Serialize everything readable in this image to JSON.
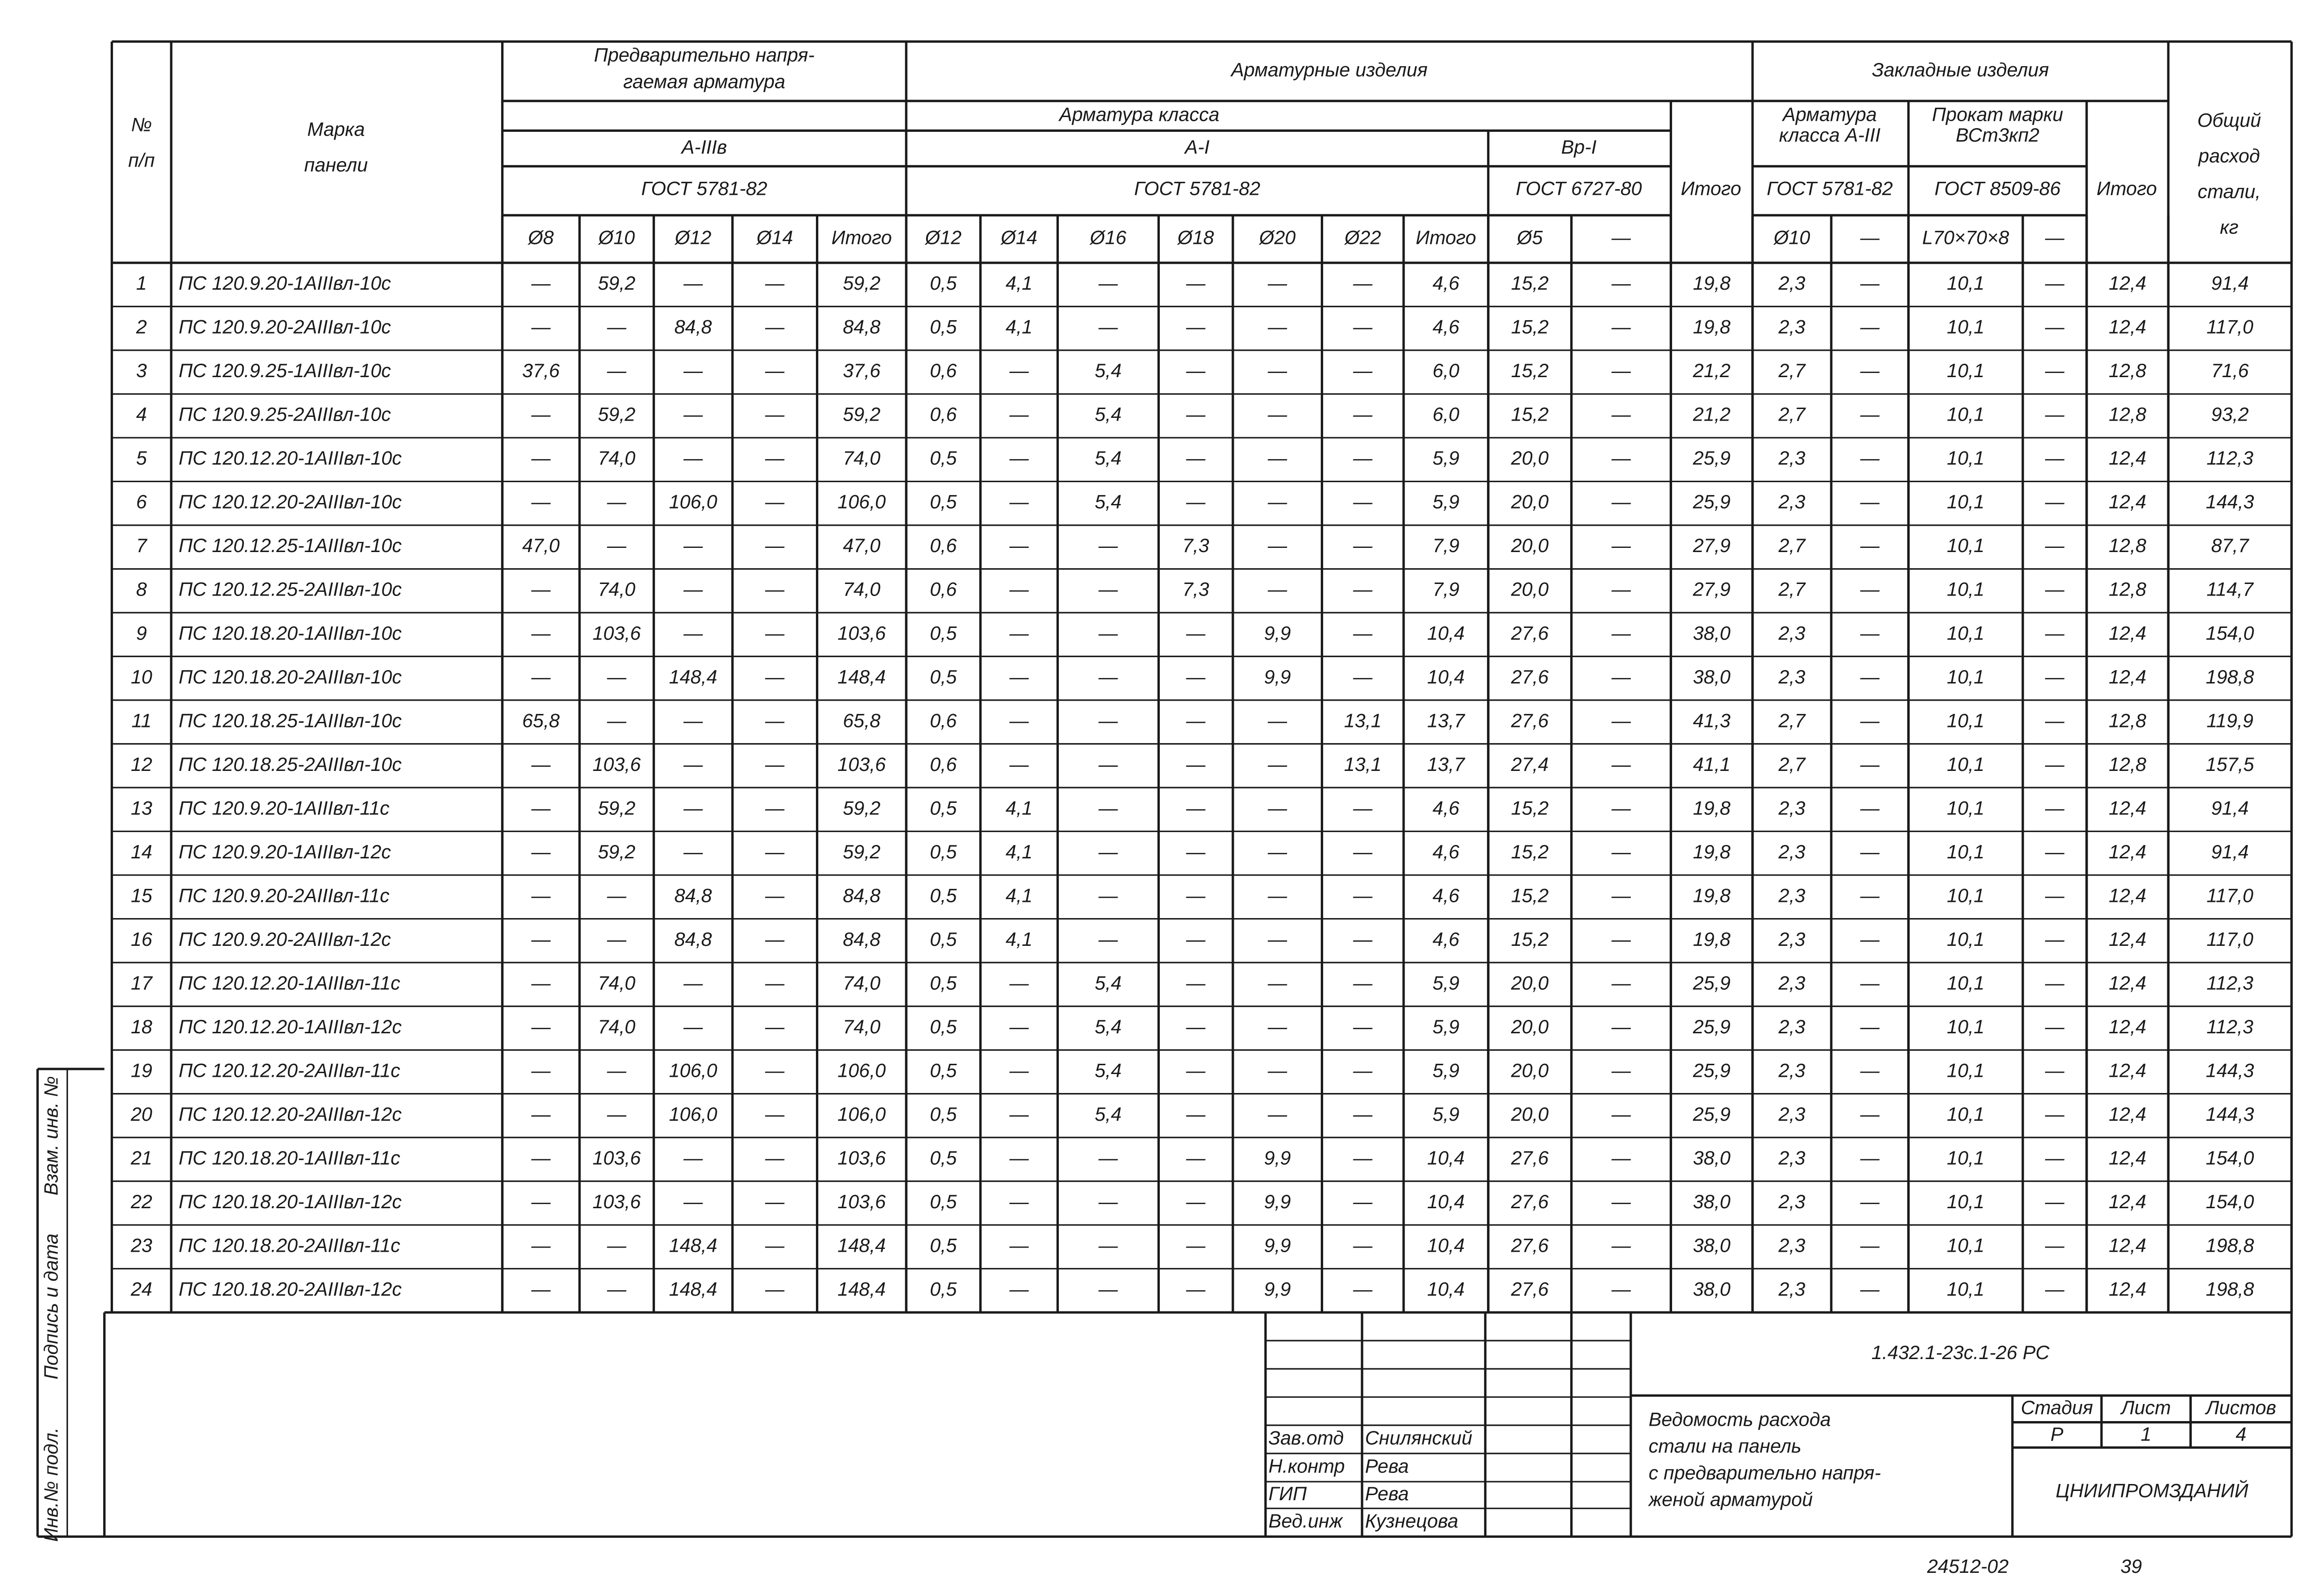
{
  "header": {
    "num": [
      "№",
      "п/п"
    ],
    "mark": [
      "Марка",
      "панели"
    ],
    "prestressed": [
      "Предварительно напря-",
      "гаемая арматура"
    ],
    "rebar_products": "Арматурные изделия",
    "embedded": "Закладные изделия",
    "total_steel": [
      "Общий",
      "расход",
      "стали,",
      "кг"
    ],
    "rebar_class": "Арматура класса",
    "class_a3v": "А-IIIв",
    "class_a1": "А-I",
    "class_vr1": "Вр-I",
    "gost_a3v": "ГОСТ 5781-82",
    "gost_a1": "ГОСТ 5781-82",
    "gost_vr1": "ГОСТ 6727-80",
    "rebar_total": "Итого",
    "emb_rebar": [
      "Арматура",
      "класса А-III"
    ],
    "emb_rolled": [
      "Прокат марки",
      "ВСт3кп2"
    ],
    "emb_gost1": "ГОСТ 5781-82",
    "emb_gost2": "ГОСТ 8509-86",
    "emb_total": "Итого",
    "columns": [
      "Ø8",
      "Ø10",
      "Ø12",
      "Ø14",
      "Итого",
      "Ø12",
      "Ø14",
      "Ø16",
      "Ø18",
      "Ø20",
      "Ø22",
      "Итого",
      "Ø5",
      "—",
      null,
      "Ø10",
      "—",
      "L70×70×8",
      "—",
      null,
      null
    ]
  },
  "table": {
    "rows": [
      [
        "1",
        "ПС 120.9.20-1АIIIвл-10с",
        "—",
        "59,2",
        "—",
        "—",
        "59,2",
        "0,5",
        "4,1",
        "—",
        "—",
        "—",
        "—",
        "4,6",
        "15,2",
        "—",
        "19,8",
        "2,3",
        "—",
        "10,1",
        "—",
        "12,4",
        "91,4"
      ],
      [
        "2",
        "ПС 120.9.20-2АIIIвл-10с",
        "—",
        "—",
        "84,8",
        "—",
        "84,8",
        "0,5",
        "4,1",
        "—",
        "—",
        "—",
        "—",
        "4,6",
        "15,2",
        "—",
        "19,8",
        "2,3",
        "—",
        "10,1",
        "—",
        "12,4",
        "117,0"
      ],
      [
        "3",
        "ПС 120.9.25-1АIIIвл-10с",
        "37,6",
        "—",
        "—",
        "—",
        "37,6",
        "0,6",
        "—",
        "5,4",
        "—",
        "—",
        "—",
        "6,0",
        "15,2",
        "—",
        "21,2",
        "2,7",
        "—",
        "10,1",
        "—",
        "12,8",
        "71,6"
      ],
      [
        "4",
        "ПС 120.9.25-2АIIIвл-10с",
        "—",
        "59,2",
        "—",
        "—",
        "59,2",
        "0,6",
        "—",
        "5,4",
        "—",
        "—",
        "—",
        "6,0",
        "15,2",
        "—",
        "21,2",
        "2,7",
        "—",
        "10,1",
        "—",
        "12,8",
        "93,2"
      ],
      [
        "5",
        "ПС 120.12.20-1АIIIвл-10с",
        "—",
        "74,0",
        "—",
        "—",
        "74,0",
        "0,5",
        "—",
        "5,4",
        "—",
        "—",
        "—",
        "5,9",
        "20,0",
        "—",
        "25,9",
        "2,3",
        "—",
        "10,1",
        "—",
        "12,4",
        "112,3"
      ],
      [
        "6",
        "ПС 120.12.20-2АIIIвл-10с",
        "—",
        "—",
        "106,0",
        "—",
        "106,0",
        "0,5",
        "—",
        "5,4",
        "—",
        "—",
        "—",
        "5,9",
        "20,0",
        "—",
        "25,9",
        "2,3",
        "—",
        "10,1",
        "—",
        "12,4",
        "144,3"
      ],
      [
        "7",
        "ПС 120.12.25-1АIIIвл-10с",
        "47,0",
        "—",
        "—",
        "—",
        "47,0",
        "0,6",
        "—",
        "—",
        "7,3",
        "—",
        "—",
        "7,9",
        "20,0",
        "—",
        "27,9",
        "2,7",
        "—",
        "10,1",
        "—",
        "12,8",
        "87,7"
      ],
      [
        "8",
        "ПС 120.12.25-2АIIIвл-10с",
        "—",
        "74,0",
        "—",
        "—",
        "74,0",
        "0,6",
        "—",
        "—",
        "7,3",
        "—",
        "—",
        "7,9",
        "20,0",
        "—",
        "27,9",
        "2,7",
        "—",
        "10,1",
        "—",
        "12,8",
        "114,7"
      ],
      [
        "9",
        "ПС 120.18.20-1АIIIвл-10с",
        "—",
        "103,6",
        "—",
        "—",
        "103,6",
        "0,5",
        "—",
        "—",
        "—",
        "9,9",
        "—",
        "10,4",
        "27,6",
        "—",
        "38,0",
        "2,3",
        "—",
        "10,1",
        "—",
        "12,4",
        "154,0"
      ],
      [
        "10",
        "ПС 120.18.20-2АIIIвл-10с",
        "—",
        "—",
        "148,4",
        "—",
        "148,4",
        "0,5",
        "—",
        "—",
        "—",
        "9,9",
        "—",
        "10,4",
        "27,6",
        "—",
        "38,0",
        "2,3",
        "—",
        "10,1",
        "—",
        "12,4",
        "198,8"
      ],
      [
        "11",
        "ПС 120.18.25-1АIIIвл-10с",
        "65,8",
        "—",
        "—",
        "—",
        "65,8",
        "0,6",
        "—",
        "—",
        "—",
        "—",
        "13,1",
        "13,7",
        "27,6",
        "—",
        "41,3",
        "2,7",
        "—",
        "10,1",
        "—",
        "12,8",
        "119,9"
      ],
      [
        "12",
        "ПС 120.18.25-2АIIIвл-10с",
        "—",
        "103,6",
        "—",
        "—",
        "103,6",
        "0,6",
        "—",
        "—",
        "—",
        "—",
        "13,1",
        "13,7",
        "27,4",
        "—",
        "41,1",
        "2,7",
        "—",
        "10,1",
        "—",
        "12,8",
        "157,5"
      ],
      [
        "13",
        "ПС 120.9.20-1АIIIвл-11с",
        "—",
        "59,2",
        "—",
        "—",
        "59,2",
        "0,5",
        "4,1",
        "—",
        "—",
        "—",
        "—",
        "4,6",
        "15,2",
        "—",
        "19,8",
        "2,3",
        "—",
        "10,1",
        "—",
        "12,4",
        "91,4"
      ],
      [
        "14",
        "ПС 120.9.20-1АIIIвл-12с",
        "—",
        "59,2",
        "—",
        "—",
        "59,2",
        "0,5",
        "4,1",
        "—",
        "—",
        "—",
        "—",
        "4,6",
        "15,2",
        "—",
        "19,8",
        "2,3",
        "—",
        "10,1",
        "—",
        "12,4",
        "91,4"
      ],
      [
        "15",
        "ПС 120.9.20-2АIIIвл-11с",
        "—",
        "—",
        "84,8",
        "—",
        "84,8",
        "0,5",
        "4,1",
        "—",
        "—",
        "—",
        "—",
        "4,6",
        "15,2",
        "—",
        "19,8",
        "2,3",
        "—",
        "10,1",
        "—",
        "12,4",
        "117,0"
      ],
      [
        "16",
        "ПС 120.9.20-2АIIIвл-12с",
        "—",
        "—",
        "84,8",
        "—",
        "84,8",
        "0,5",
        "4,1",
        "—",
        "—",
        "—",
        "—",
        "4,6",
        "15,2",
        "—",
        "19,8",
        "2,3",
        "—",
        "10,1",
        "—",
        "12,4",
        "117,0"
      ],
      [
        "17",
        "ПС 120.12.20-1АIIIвл-11с",
        "—",
        "74,0",
        "—",
        "—",
        "74,0",
        "0,5",
        "—",
        "5,4",
        "—",
        "—",
        "—",
        "5,9",
        "20,0",
        "—",
        "25,9",
        "2,3",
        "—",
        "10,1",
        "—",
        "12,4",
        "112,3"
      ],
      [
        "18",
        "ПС 120.12.20-1АIIIвл-12с",
        "—",
        "74,0",
        "—",
        "—",
        "74,0",
        "0,5",
        "—",
        "5,4",
        "—",
        "—",
        "—",
        "5,9",
        "20,0",
        "—",
        "25,9",
        "2,3",
        "—",
        "10,1",
        "—",
        "12,4",
        "112,3"
      ],
      [
        "19",
        "ПС 120.12.20-2АIIIвл-11с",
        "—",
        "—",
        "106,0",
        "—",
        "106,0",
        "0,5",
        "—",
        "5,4",
        "—",
        "—",
        "—",
        "5,9",
        "20,0",
        "—",
        "25,9",
        "2,3",
        "—",
        "10,1",
        "—",
        "12,4",
        "144,3"
      ],
      [
        "20",
        "ПС 120.12.20-2АIIIвл-12с",
        "—",
        "—",
        "106,0",
        "—",
        "106,0",
        "0,5",
        "—",
        "5,4",
        "—",
        "—",
        "—",
        "5,9",
        "20,0",
        "—",
        "25,9",
        "2,3",
        "—",
        "10,1",
        "—",
        "12,4",
        "144,3"
      ],
      [
        "21",
        "ПС 120.18.20-1АIIIвл-11с",
        "—",
        "103,6",
        "—",
        "—",
        "103,6",
        "0,5",
        "—",
        "—",
        "—",
        "9,9",
        "—",
        "10,4",
        "27,6",
        "—",
        "38,0",
        "2,3",
        "—",
        "10,1",
        "—",
        "12,4",
        "154,0"
      ],
      [
        "22",
        "ПС 120.18.20-1АIIIвл-12с",
        "—",
        "103,6",
        "—",
        "—",
        "103,6",
        "0,5",
        "—",
        "—",
        "—",
        "9,9",
        "—",
        "10,4",
        "27,6",
        "—",
        "38,0",
        "2,3",
        "—",
        "10,1",
        "—",
        "12,4",
        "154,0"
      ],
      [
        "23",
        "ПС 120.18.20-2АIIIвл-11с",
        "—",
        "—",
        "148,4",
        "—",
        "148,4",
        "0,5",
        "—",
        "—",
        "—",
        "9,9",
        "—",
        "10,4",
        "27,6",
        "—",
        "38,0",
        "2,3",
        "—",
        "10,1",
        "—",
        "12,4",
        "198,8"
      ],
      [
        "24",
        "ПС 120.18.20-2АIIIвл-12с",
        "—",
        "—",
        "148,4",
        "—",
        "148,4",
        "0,5",
        "—",
        "—",
        "—",
        "9,9",
        "—",
        "10,4",
        "27,6",
        "—",
        "38,0",
        "2,3",
        "—",
        "10,1",
        "—",
        "12,4",
        "198,8"
      ]
    ]
  },
  "title_block": {
    "code": "1.432.1-23с.1-26 РС",
    "roles": [
      "Зав.отд",
      "Н.контр",
      "ГИП",
      "Вед.инж"
    ],
    "names": [
      "Снилянский",
      "Рева",
      "Рева",
      "Кузнецова"
    ],
    "title": [
      "Ведомость расхода",
      "стали на панель",
      "с предварительно напря-",
      "женой арматурой"
    ],
    "stage_label": "Стадия",
    "sheet_label": "Лист",
    "sheets_label": "Листов",
    "stage": "Р",
    "sheet": "1",
    "sheets": "4",
    "org": "ЦНИИПРОМЗДАНИЙ"
  },
  "side_stamp": [
    "Инв.№ подл.",
    "Подпись и дата",
    "Взам. инв. №"
  ],
  "footer": {
    "archive": "24512-02",
    "page": "39"
  }
}
